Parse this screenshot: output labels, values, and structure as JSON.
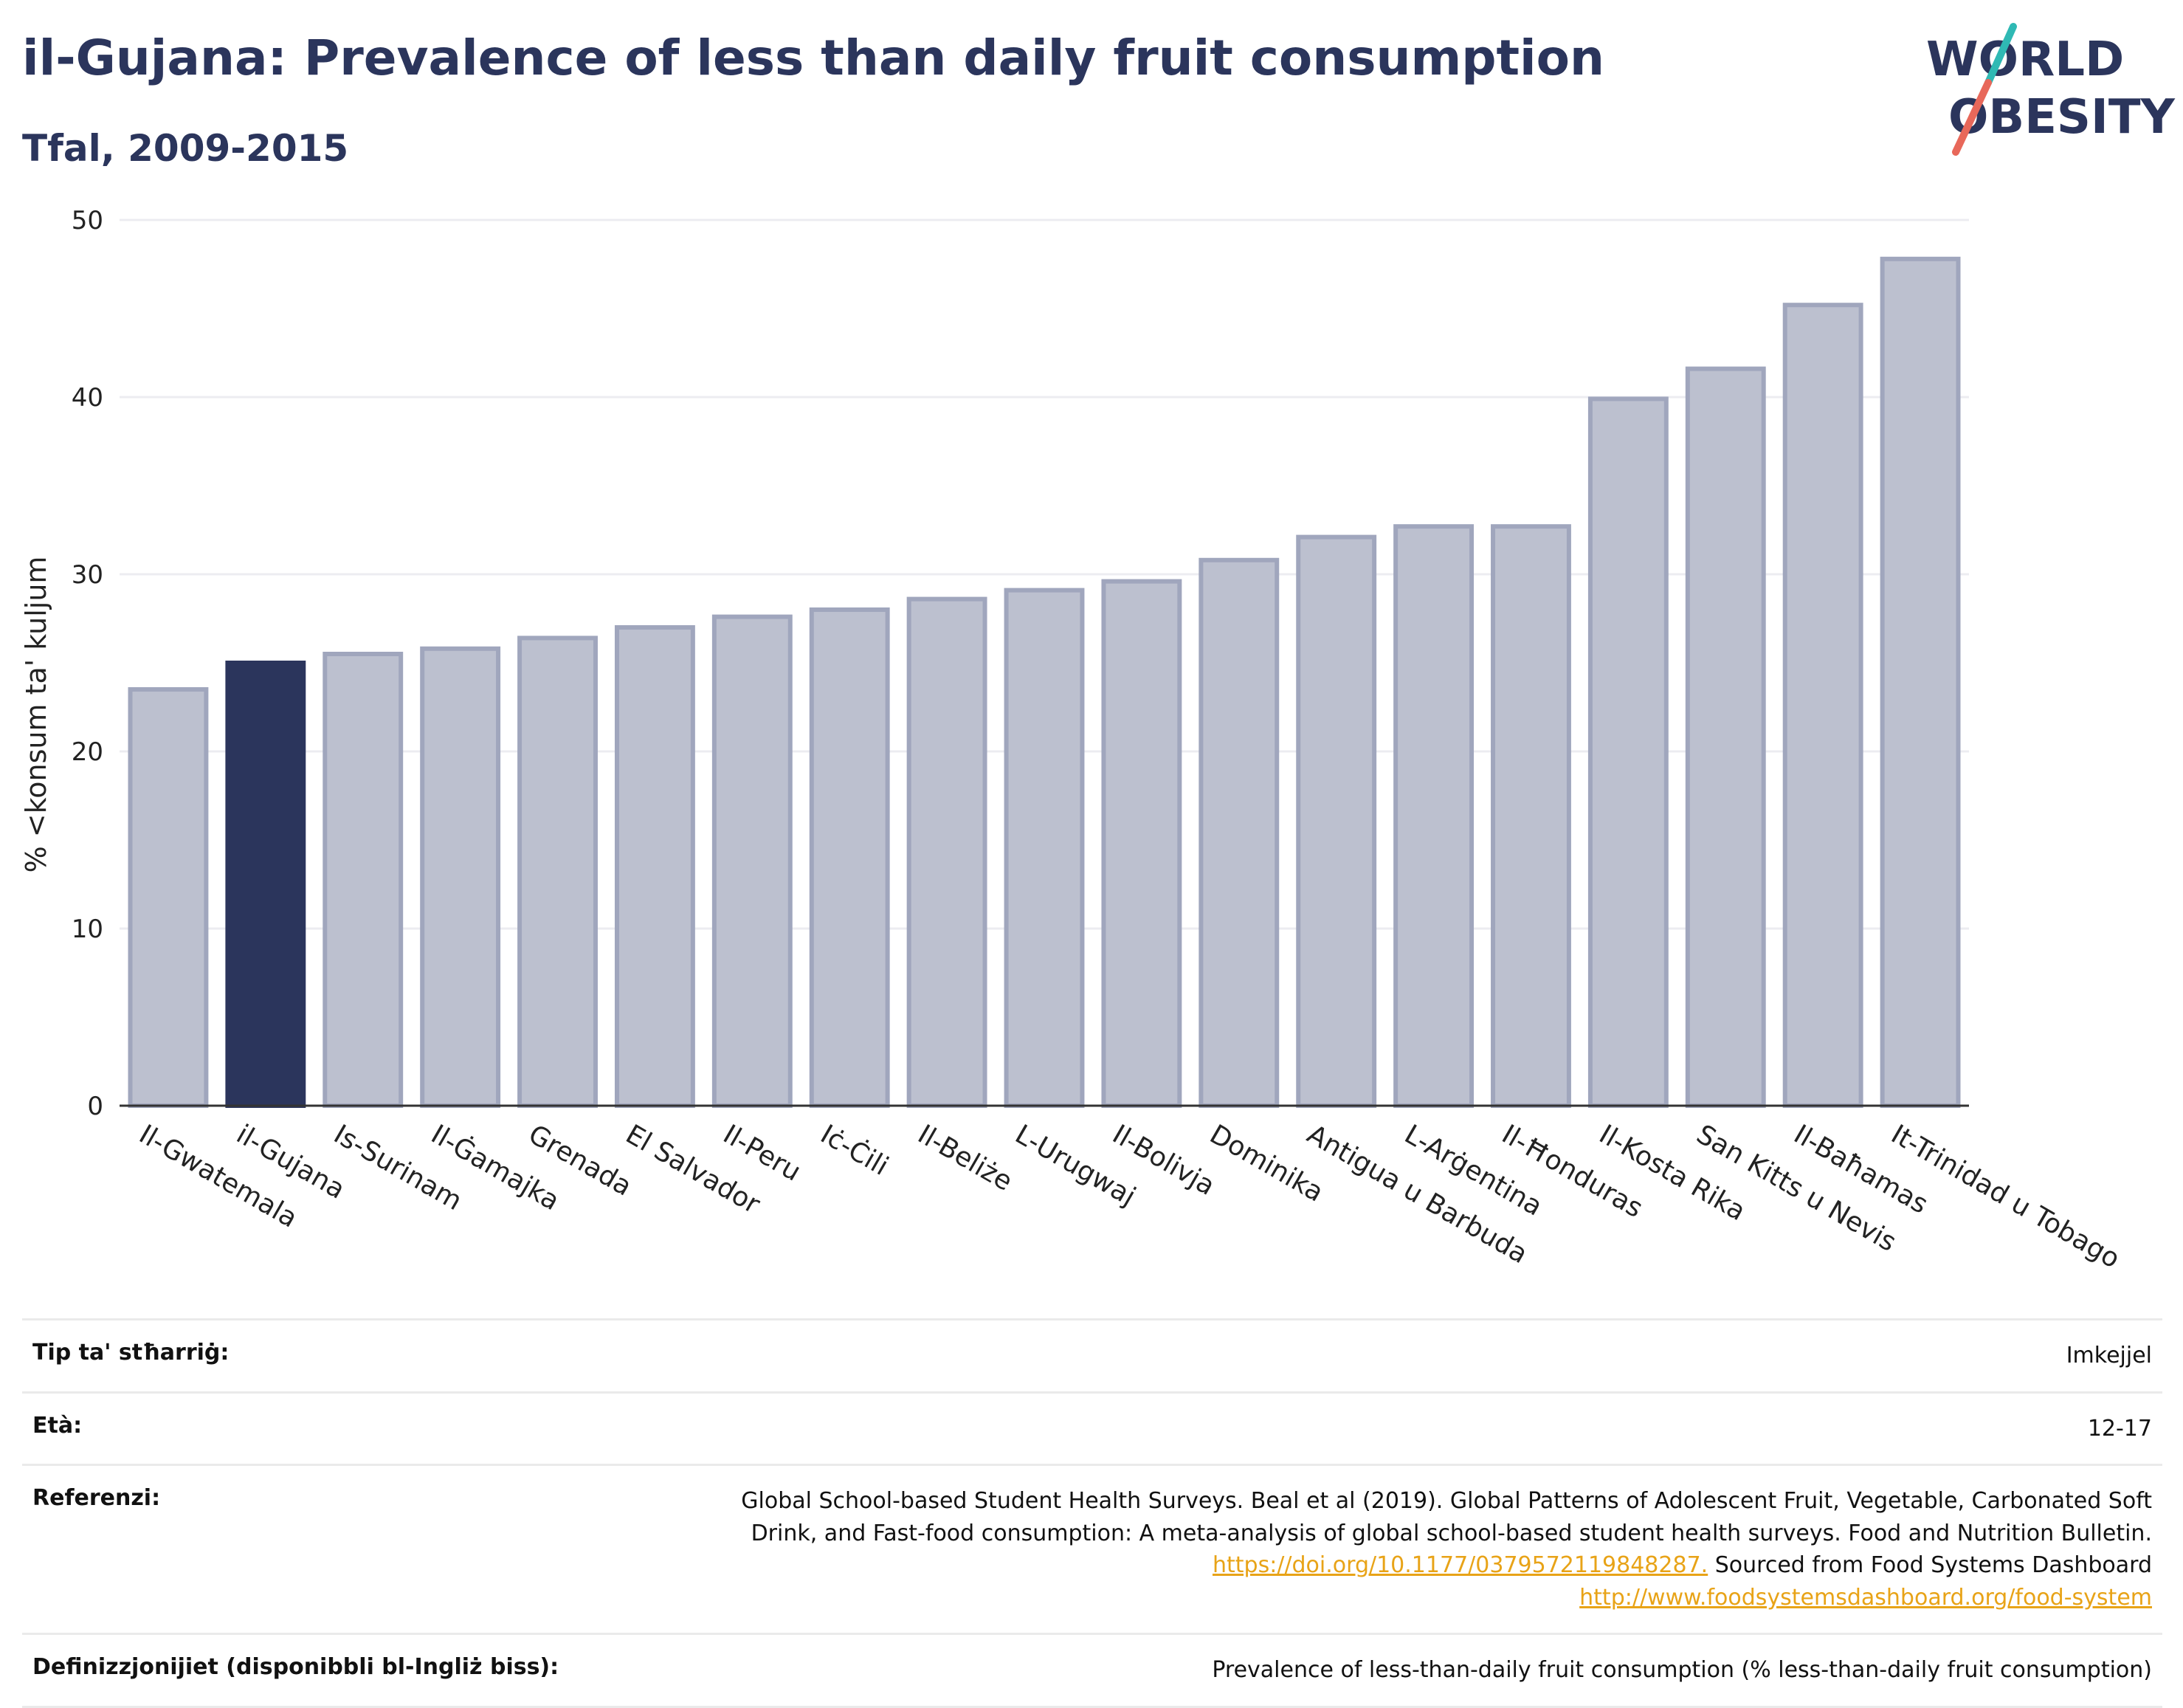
{
  "header": {
    "title": "il-Gujana: Prevalence of less than daily fruit consumption",
    "subtitle": "Tfal, 2009-2015"
  },
  "logo": {
    "line1": "WORLD",
    "line2": "OBESITY",
    "slash_colors": [
      "#2fb9b4",
      "#e8685a"
    ]
  },
  "colors": {
    "bar": "#bcc0cf",
    "bar_border": "#a0a6bd",
    "highlight": "#2b355c",
    "text": "#2b355c",
    "link": "#e8a317"
  },
  "chart_data": {
    "type": "bar",
    "ylabel": "% <konsum ta' kuljum",
    "ylim": [
      0,
      50
    ],
    "yticks": [
      0,
      10,
      20,
      30,
      40,
      50
    ],
    "grid": true,
    "highlight": "il-Gujana",
    "categories": [
      "Il-Gwatemala",
      "il-Gujana",
      "Is-Surinam",
      "Il-Ġamajka",
      "Grenada",
      "El Salvador",
      "Il-Peru",
      "Iċ-Ċili",
      "Il-Beliże",
      "L-Urugwaj",
      "Il-Bolivja",
      "Dominika",
      "Antigua u Barbuda",
      "L-Arġentina",
      "Il-Ħonduras",
      "Il-Kosta Rika",
      "San Kitts u Nevis",
      "Il-Baħamas",
      "It-Trinidad u Tobago"
    ],
    "values": [
      23.5,
      25.0,
      25.5,
      25.8,
      26.4,
      27.0,
      27.6,
      28.0,
      28.6,
      29.1,
      29.6,
      30.8,
      32.1,
      32.7,
      32.7,
      39.9,
      41.6,
      45.2,
      47.8
    ]
  },
  "info": {
    "rows": [
      {
        "key": "Tip ta' stħarriġ:",
        "value": "Imkejjel"
      },
      {
        "key": "Età:",
        "value": "12-17"
      },
      {
        "key": "Referenzi:",
        "text1": "Global School-based Student Health Surveys. Beal et al (2019). Global Patterns of Adolescent Fruit, Vegetable, Carbonated Soft Drink, and Fast-food consumption: A meta-analysis of global school-based student health surveys. Food and Nutrition Bulletin.",
        "link1": "https://doi.org/10.1177/0379572119848287.",
        "text2": "Sourced from Food Systems Dashboard",
        "link2": "http://www.foodsystemsdashboard.org/food-system"
      },
      {
        "key": "Definizzjonijiet (disponibbli bl-Ingliż biss):",
        "value": "Prevalence of less-than-daily fruit consumption (% less-than-daily fruit consumption)"
      }
    ]
  }
}
